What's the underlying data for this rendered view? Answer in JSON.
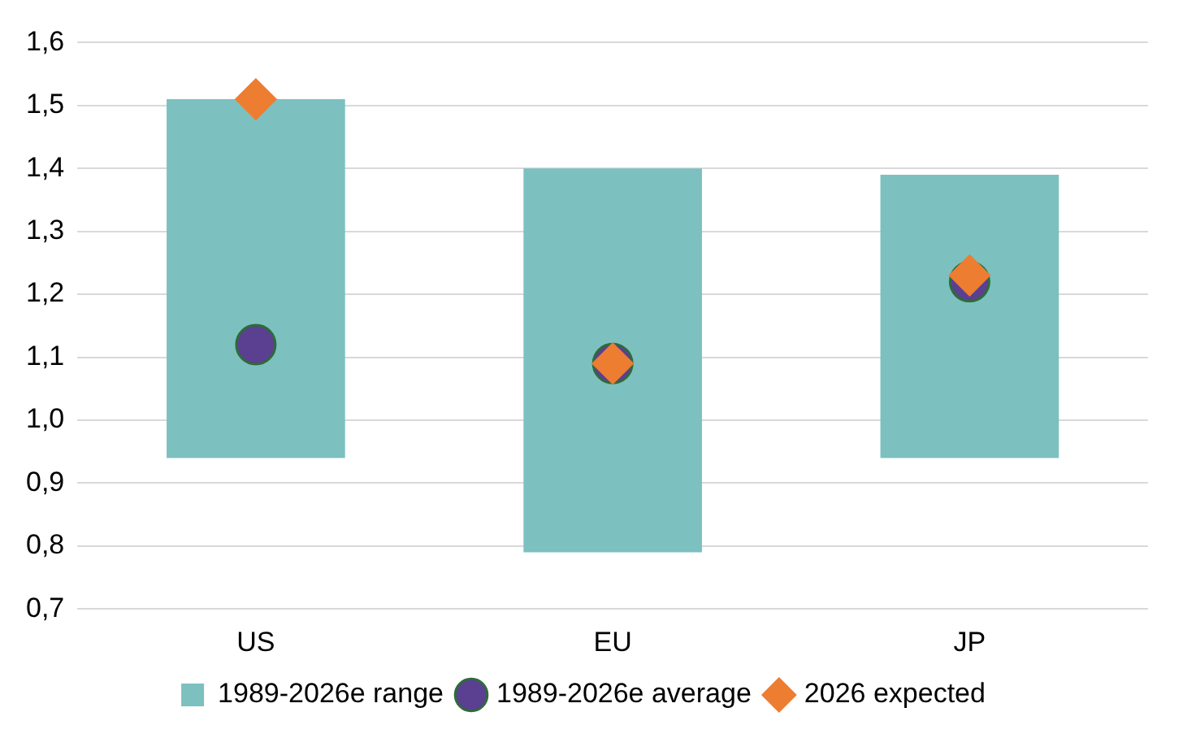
{
  "chart_data": {
    "type": "bar",
    "categories": [
      "US",
      "EU",
      "JP"
    ],
    "series": [
      {
        "name": "1989-2026e range",
        "color": "#7cc0bf",
        "base": [
          0.94,
          0.79,
          0.94
        ],
        "values": [
          0.57,
          0.61,
          0.45
        ]
      },
      {
        "name": "1989-2026e average",
        "type": "scatter",
        "marker": "circle",
        "color": "#5b3f91",
        "x": [
          "US",
          "EU",
          "JP"
        ],
        "values": [
          1.12,
          1.09,
          1.22
        ]
      },
      {
        "name": "2026 expected",
        "type": "scatter",
        "marker": "diamond",
        "color": "#ed7d31",
        "x": [
          "US",
          "EU",
          "JP"
        ],
        "values": [
          1.51,
          1.09,
          1.23
        ]
      }
    ],
    "ylim": [
      0.7,
      1.6
    ],
    "yticks": [
      {
        "value": 0.7,
        "label": "0,7"
      },
      {
        "value": 0.8,
        "label": "0,8"
      },
      {
        "value": 0.9,
        "label": "0,9"
      },
      {
        "value": 1.0,
        "label": "1,0"
      },
      {
        "value": 1.1,
        "label": "1,1"
      },
      {
        "value": 1.2,
        "label": "1,2"
      },
      {
        "value": 1.3,
        "label": "1,3"
      },
      {
        "value": 1.4,
        "label": "1,4"
      },
      {
        "value": 1.5,
        "label": "1,5"
      },
      {
        "value": 1.6,
        "label": "1,6"
      }
    ],
    "grid": "y",
    "legend": "bottom"
  }
}
